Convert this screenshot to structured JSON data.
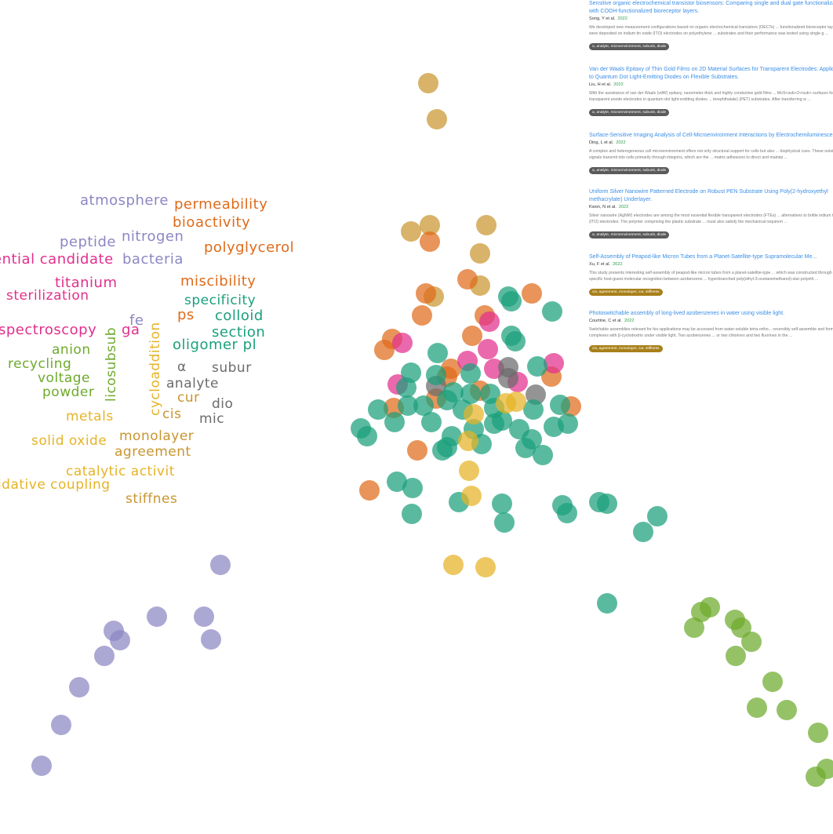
{
  "colors": {
    "purple": "#8c87c3",
    "green_teal": "#1aa07b",
    "orange": "#df6b1a",
    "gold": "#c9952f",
    "yellow": "#e6b326",
    "pink": "#e22f8d",
    "lime": "#6eaa2c",
    "gray": "#6b6b6b",
    "link": "#3b8ee6",
    "tag_gray": "#5a5a5a",
    "tag_gold": "#a8801a"
  },
  "word_cloud": [
    {
      "text": "atmosphere",
      "color": "#8c87c3"
    },
    {
      "text": "permeability",
      "color": "#df6b1a"
    },
    {
      "text": "bioactivity",
      "color": "#df6b1a"
    },
    {
      "text": "peptide",
      "color": "#8c87c3"
    },
    {
      "text": "nitrogen",
      "color": "#8c87c3"
    },
    {
      "text": "polyglycerol",
      "color": "#df6b1a"
    },
    {
      "text": "potential candidate",
      "color": "#e22f8d"
    },
    {
      "text": "bacteria",
      "color": "#8c87c3"
    },
    {
      "text": "titanium",
      "color": "#e22f8d"
    },
    {
      "text": "miscibility",
      "color": "#df6b1a"
    },
    {
      "text": "sterilization",
      "color": "#e22f8d"
    },
    {
      "text": "specificity",
      "color": "#1aa07b"
    },
    {
      "text": "ps",
      "color": "#df6b1a"
    },
    {
      "text": "colloid",
      "color": "#1aa07b"
    },
    {
      "text": "fe",
      "color": "#8c87c3"
    },
    {
      "text": "spectroscopy",
      "color": "#e22f8d"
    },
    {
      "text": "ga",
      "color": "#e22f8d"
    },
    {
      "text": "section",
      "color": "#1aa07b"
    },
    {
      "text": "oligomer pl",
      "color": "#1aa07b"
    },
    {
      "text": "anion",
      "color": "#6eaa2c"
    },
    {
      "text": "recycling",
      "color": "#6eaa2c"
    },
    {
      "text": "voltage",
      "color": "#6eaa2c"
    },
    {
      "text": "powder",
      "color": "#6eaa2c"
    },
    {
      "text": "α",
      "color": "#6b6b6b"
    },
    {
      "text": "subur",
      "color": "#6b6b6b"
    },
    {
      "text": "analyte",
      "color": "#6b6b6b"
    },
    {
      "text": "cur",
      "color": "#c9952f"
    },
    {
      "text": "dio",
      "color": "#6b6b6b"
    },
    {
      "text": "cis",
      "color": "#c9952f"
    },
    {
      "text": "mic",
      "color": "#6b6b6b"
    },
    {
      "text": "metals",
      "color": "#e6b326"
    },
    {
      "text": "solid oxide",
      "color": "#e6b326"
    },
    {
      "text": "monolayer",
      "color": "#c9952f"
    },
    {
      "text": "agreement",
      "color": "#c9952f"
    },
    {
      "text": "catalytic activit",
      "color": "#e6b326"
    },
    {
      "text": "oxidative coupling",
      "color": "#e6b326"
    },
    {
      "text": "stiffnes",
      "color": "#c9952f"
    },
    {
      "text": "cycloaddition",
      "color": "#e6b326"
    },
    {
      "text": "licosubsub",
      "color": "#6eaa2c"
    }
  ],
  "results": [
    {
      "title": "Sensitive organic electrochemical transistor biosensors: Comparing single and dual gate functionalization with COOH-functionalized bioreceptor layers.",
      "authors": "Song, Y et al.",
      "year": "2022",
      "abstract": "We developed new measurement configurations based on organic electrochemical transistors (OECTs) ... functionalized bioreceptor layers were deposited on indium tin oxide (ITO) electrodes on polyethylene ... substrates and their performance was tested using single g ...",
      "tags": "α, analyte, microenvironment, subunit, diode",
      "tag_color": "#5a5a5a"
    },
    {
      "title": "Van der Waals Epitaxy of Thin Gold Films on 2D Material Surfaces for Transparent Electrodes: Application to Quantum Dot Light-Emitting Diodes on Flexible Substrates.",
      "authors": "Liu, H et al.",
      "year": "2022",
      "abstract": "With the assistance of van der Waals (vdW) epitaxy, nanometer-thick and highly conductive gold films ... MoS<sub>2</sub> surfaces for use as transparent anode electrodes in quantum dot light-emitting diodes ... terephthalate) (PET) substrates. After transferring w ...",
      "tags": "α, analyte, microenvironment, subunit, diode",
      "tag_color": "#5a5a5a"
    },
    {
      "title": "Surface-Sensitive Imaging Analysis of Cell-Microenvironment Interactions by Electrochemiluminescence.",
      "authors": "Ding, L et al.",
      "year": "2022",
      "abstract": "A complex and heterogeneous cell microenvironment offers not only structural support for cells but also ... biophysical cues. These outside-in signals transmit into cells primarily through integrins, which are the ... matrix adhesions to direct and maintai ...",
      "tags": "α, analyte, microenvironment, subunit, diode",
      "tag_color": "#5a5a5a"
    },
    {
      "title": "Uniform Silver Nanowire Patterned Electrode on Robust PEN Substrate Using Poly(2-hydroxyethyl methacrylate) Underlayer.",
      "authors": "Kwon, N et al.",
      "year": "2022",
      "abstract": "Silver nanowire (AgNW) electrodes are among the most essential flexible transparent electrodes (FTEs) ... alternatives to brittle indium tin oxide (ITO) electrodes. The polymer comprising the plastic substrate ... must also satisfy the mechanical requirem ...",
      "tags": "α, analyte, microenvironment, subunit, diode",
      "tag_color": "#5a5a5a"
    },
    {
      "title": "Self-Assembly of Peapod-like Micron Tubes from a Planet-Satellite-type Supramolecular Me...",
      "authors": "Xu, F et al.",
      "year": "2022",
      "abstract": "This study presents interesting self-assembly of peapod-like micron tubes from a planet-satellite-type ... which was constructed through the specific host-guest molecular recognition between azobenzene ... hyperbranched poly(ethyl-3-oxetanemethanol)-star-polyeth ...",
      "tags": "cis, agreement, monolayer, cur, stiffness",
      "tag_color": "#a8801a"
    },
    {
      "title": "Photoswitchable assembly of long-lived azobenzenes in water using visible light.",
      "authors": "Courtine, C et al.",
      "year": "2022",
      "abstract": "Switchable assemblies relevant for bio-applications may be accessed from water-soluble tetra-ortho... reversibly self-assemble and form complexes with β-cyclodextrin under visible light. Two azobenzenes ... or two chlorines and two fluorines in the ...",
      "tags": "cis, agreement, monolayer, cur, stiffness",
      "tag_color": "#a8801a"
    }
  ]
}
